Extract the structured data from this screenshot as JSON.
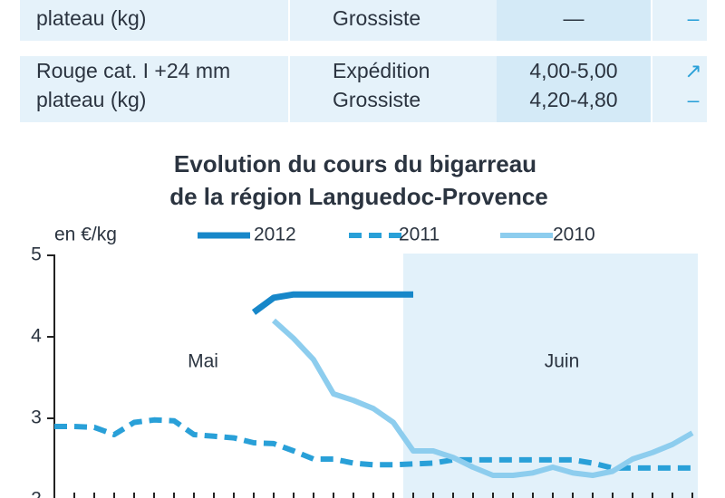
{
  "table": {
    "rows": [
      {
        "product": [
          "plateau (kg)"
        ],
        "market": [
          "Grossiste"
        ],
        "price": [
          "—"
        ],
        "trend": [
          "–"
        ]
      },
      {
        "product": [
          "Rouge cat. I +24 mm",
          "plateau (kg)"
        ],
        "market": [
          "Expédition",
          "Grossiste"
        ],
        "price": [
          "4,00-5,00",
          "4,20-4,80"
        ],
        "trend": [
          "↗",
          "–"
        ]
      }
    ]
  },
  "chart_data": {
    "type": "line",
    "title": [
      "Evolution du cours du  bigarreau",
      "de la région Languedoc-Provence"
    ],
    "y_label": "en €/kg",
    "periods": [
      "Mai",
      "Juin"
    ],
    "x": [
      0,
      1,
      2,
      3,
      4,
      5,
      6,
      7,
      8,
      9,
      10,
      11,
      12,
      13,
      14,
      15,
      16,
      17,
      18,
      19,
      20,
      21,
      22,
      23,
      24,
      25,
      26,
      27,
      28,
      29,
      30,
      31,
      32
    ],
    "xlim": [
      0,
      32
    ],
    "ylim": [
      2,
      5
    ],
    "yticks": [
      2,
      3,
      4,
      5
    ],
    "series": [
      {
        "name": "2012",
        "color": "#1787c9",
        "style": "solid",
        "values": [
          null,
          null,
          null,
          null,
          null,
          null,
          null,
          null,
          null,
          null,
          4.3,
          4.48,
          4.52,
          4.52,
          4.52,
          4.52,
          4.52,
          4.52,
          4.52,
          null,
          null,
          null,
          null,
          null,
          null,
          null,
          null,
          null,
          null,
          null,
          null,
          null,
          null
        ]
      },
      {
        "name": "2011",
        "color": "#29a0d8",
        "style": "dashed",
        "values": [
          2.9,
          2.9,
          2.89,
          2.8,
          2.95,
          2.98,
          2.97,
          2.8,
          2.78,
          2.76,
          2.7,
          2.69,
          2.6,
          2.5,
          2.5,
          2.45,
          2.43,
          2.43,
          2.44,
          2.45,
          2.49,
          2.49,
          2.49,
          2.49,
          2.49,
          2.49,
          2.49,
          2.45,
          2.39,
          2.39,
          2.39,
          2.39,
          2.39
        ]
      },
      {
        "name": "2010",
        "color": "#8dcdee",
        "style": "solid",
        "values": [
          null,
          null,
          null,
          null,
          null,
          null,
          null,
          null,
          null,
          null,
          null,
          4.2,
          3.98,
          3.72,
          3.3,
          3.22,
          3.12,
          2.95,
          2.6,
          2.6,
          2.52,
          2.4,
          2.3,
          2.3,
          2.33,
          2.4,
          2.33,
          2.3,
          2.35,
          2.5,
          2.58,
          2.68,
          2.82
        ]
      }
    ]
  }
}
